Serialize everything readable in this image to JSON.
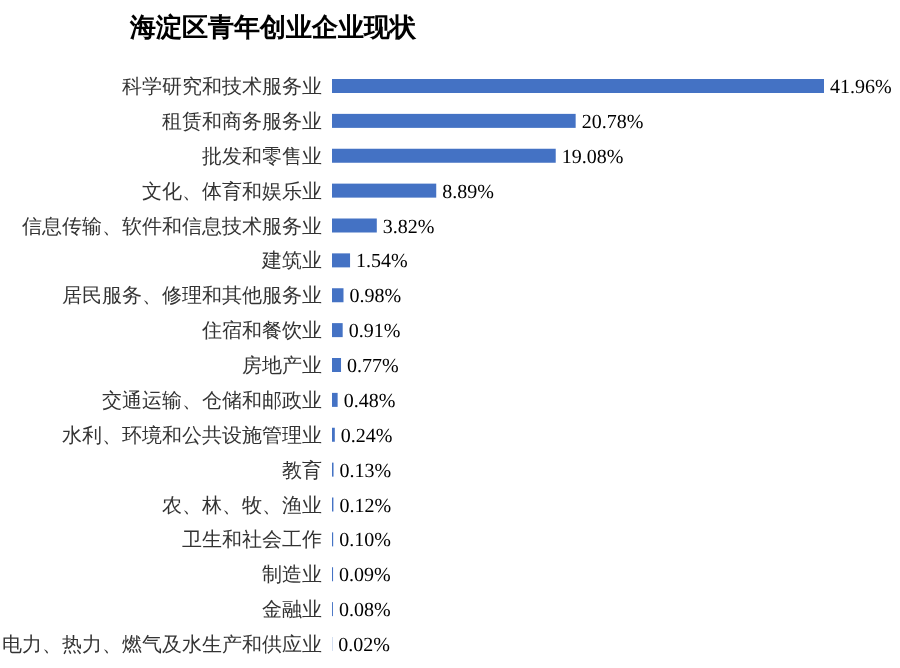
{
  "chart_data": {
    "type": "bar",
    "orientation": "horizontal",
    "title": "海淀区青年创业企业现状",
    "categories": [
      "科学研究和技术服务业",
      "租赁和商务服务业",
      "批发和零售业",
      "文化、体育和娱乐业",
      "信息传输、软件和信息技术服务业",
      "建筑业",
      "居民服务、修理和其他服务业",
      "住宿和餐饮业",
      "房地产业",
      "交通运输、仓储和邮政业",
      "水利、环境和公共设施管理业",
      "教育",
      "农、林、牧、渔业",
      "卫生和社会工作",
      "制造业",
      "金融业",
      "电力、热力、燃气及水生产和供应业"
    ],
    "values": [
      41.96,
      20.78,
      19.08,
      8.89,
      3.82,
      1.54,
      0.98,
      0.91,
      0.77,
      0.48,
      0.24,
      0.13,
      0.12,
      0.1,
      0.09,
      0.08,
      0.02
    ],
    "value_labels": [
      "41.96%",
      "20.78%",
      "19.08%",
      "8.89%",
      "3.82%",
      "1.54%",
      "0.98%",
      "0.91%",
      "0.77%",
      "0.48%",
      "0.24%",
      "0.13%",
      "0.12%",
      "0.10%",
      "0.09%",
      "0.08%",
      "0.02%"
    ],
    "color": "#4472c4"
  }
}
